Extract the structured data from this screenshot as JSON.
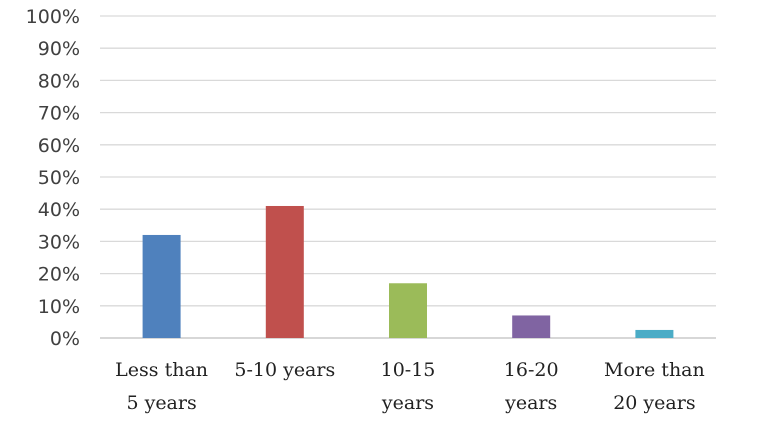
{
  "chart_data": {
    "type": "bar",
    "categories": [
      [
        "Less than",
        "5 years"
      ],
      [
        "5-10 years"
      ],
      [
        "10-15",
        "years"
      ],
      [
        "16-20",
        "years"
      ],
      [
        "More than",
        "20 years"
      ]
    ],
    "values": [
      32,
      41,
      17,
      7,
      2.5
    ],
    "colors": [
      "#4f81bd",
      "#c0504d",
      "#9bbb59",
      "#8064a2",
      "#4bacc6"
    ],
    "ylim": [
      0,
      100
    ],
    "yticks": [
      0,
      10,
      20,
      30,
      40,
      50,
      60,
      70,
      80,
      90,
      100
    ],
    "ytick_labels": [
      "0%",
      "10%",
      "20%",
      "30%",
      "40%",
      "50%",
      "60%",
      "70%",
      "80%",
      "90%",
      "100%"
    ],
    "grid": true,
    "legend": false,
    "title": "",
    "xlabel": "",
    "ylabel": ""
  }
}
